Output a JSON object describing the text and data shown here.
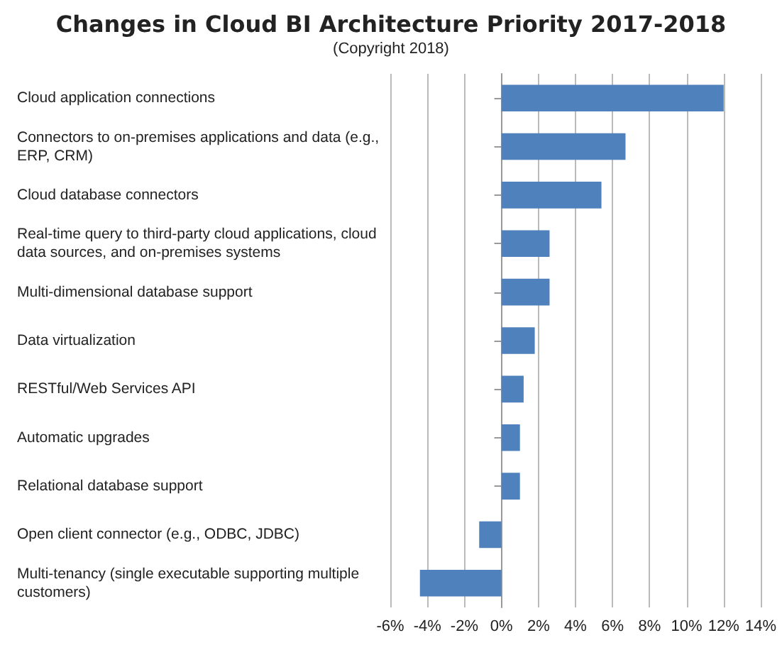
{
  "chart_data": {
    "type": "bar",
    "orientation": "horizontal",
    "title": "Changes in Cloud BI Architecture Priority 2017-2018",
    "subtitle": "(Copyright 2018)",
    "categories": [
      "Cloud application connections",
      "Connectors to on-premises applications and data (e.g., ERP, CRM)",
      "Cloud database connectors",
      "Real-time query to third-party cloud applications, cloud data sources, and on-premises systems",
      "Multi-dimensional database support",
      "Data virtualization",
      "RESTful/Web Services API",
      "Automatic upgrades",
      "Relational database support",
      "Open client connector (e.g., ODBC, JDBC)",
      "Multi-tenancy (single executable supporting multiple customers)"
    ],
    "values": [
      12,
      6.7,
      5.4,
      2.6,
      2.6,
      1.8,
      1.2,
      1.0,
      1.0,
      -1.2,
      -4.4
    ],
    "color": "#4f81bd",
    "xlim": [
      -6,
      14
    ],
    "xticks": [
      {
        "value": -6,
        "label": "-6%"
      },
      {
        "value": -4,
        "label": "-4%"
      },
      {
        "value": -2,
        "label": "-2%"
      },
      {
        "value": 0,
        "label": "0%"
      },
      {
        "value": 2,
        "label": "2%"
      },
      {
        "value": 4,
        "label": "4%"
      },
      {
        "value": 6,
        "label": "6%"
      },
      {
        "value": 8,
        "label": "8%"
      },
      {
        "value": 10,
        "label": "10%"
      },
      {
        "value": 12,
        "label": "12%"
      },
      {
        "value": 14,
        "label": "14%"
      }
    ],
    "grid": "x"
  }
}
